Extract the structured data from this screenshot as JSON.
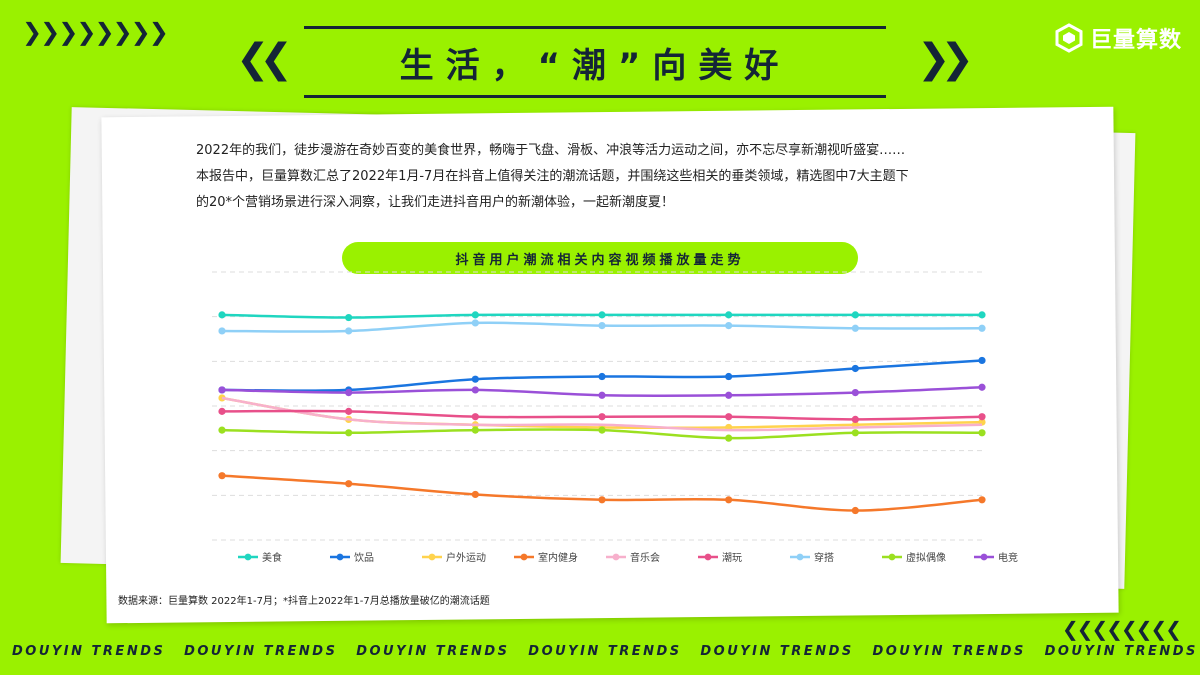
{
  "header": {
    "left_chevrons": "❯❯❯❯❯❯❯❯",
    "title": "生活，“潮”向美好",
    "logo_text": "巨量算数"
  },
  "intro": {
    "line1": "2022年的我们，徒步漫游在奇妙百变的美食世界，畅嗨于飞盘、滑板、冲浪等活力运动之间，亦不忘尽享新潮视听盛宴……",
    "line2": "本报告中，巨量算数汇总了2022年1月-7月在抖音上值得关注的潮流话题，并围绕这些相关的垂类领域，精选图中7大主题下",
    "line3": "的20*个营销场景进行深入洞察，让我们走进抖音用户的新潮体验，一起新潮度夏！"
  },
  "source": "数据来源：巨量算数 2022年1-7月；*抖音上2022年1-7月总播放量破亿的潮流话题",
  "footer": {
    "right_chevrons": "❮❮❮❮❮❮❮❮",
    "labels": [
      "DOUYIN TRENDS",
      "DOUYIN TRENDS",
      "DOUYIN TRENDS",
      "DOUYIN TRENDS",
      "DOUYIN TRENDS",
      "DOUYIN TRENDS",
      "DOUYIN TRENDS"
    ]
  },
  "chart_data": {
    "type": "line",
    "title": "抖音用户潮流相关内容视频播放量走势",
    "xlabel": "",
    "ylabel": "",
    "grid": true,
    "legend_position": "bottom",
    "y_ticks_visible": false,
    "x_ticks_visible": false,
    "x": [
      1,
      2,
      3,
      4,
      5,
      6,
      7
    ],
    "ylim": [
      0,
      100
    ],
    "series": [
      {
        "name": "美食",
        "color": "#1fd6c0",
        "values": [
          84,
          83,
          84,
          84,
          84,
          84,
          84
        ]
      },
      {
        "name": "饮品",
        "color": "#1a75e0",
        "values": [
          56,
          56,
          60,
          61,
          61,
          64,
          67
        ]
      },
      {
        "name": "户外运动",
        "color": "#ffd34d",
        "values": [
          53,
          45,
          43,
          42,
          42,
          43,
          44
        ]
      },
      {
        "name": "室内健身",
        "color": "#f5782a",
        "values": [
          24,
          21,
          17,
          15,
          15,
          11,
          15
        ]
      },
      {
        "name": "音乐会",
        "color": "#f7b0cc",
        "values": [
          53,
          45,
          43,
          43,
          41,
          42,
          43
        ]
      },
      {
        "name": "潮玩",
        "color": "#e8508a",
        "values": [
          48,
          48,
          46,
          46,
          46,
          45,
          46
        ]
      },
      {
        "name": "穿搭",
        "color": "#8fd0f7",
        "values": [
          78,
          78,
          81,
          80,
          80,
          79,
          79
        ]
      },
      {
        "name": "虚拟偶像",
        "color": "#9be020",
        "values": [
          41,
          40,
          41,
          41,
          38,
          40,
          40
        ]
      },
      {
        "name": "电竞",
        "color": "#9a50d8",
        "values": [
          56,
          55,
          56,
          54,
          54,
          55,
          57
        ]
      }
    ]
  }
}
